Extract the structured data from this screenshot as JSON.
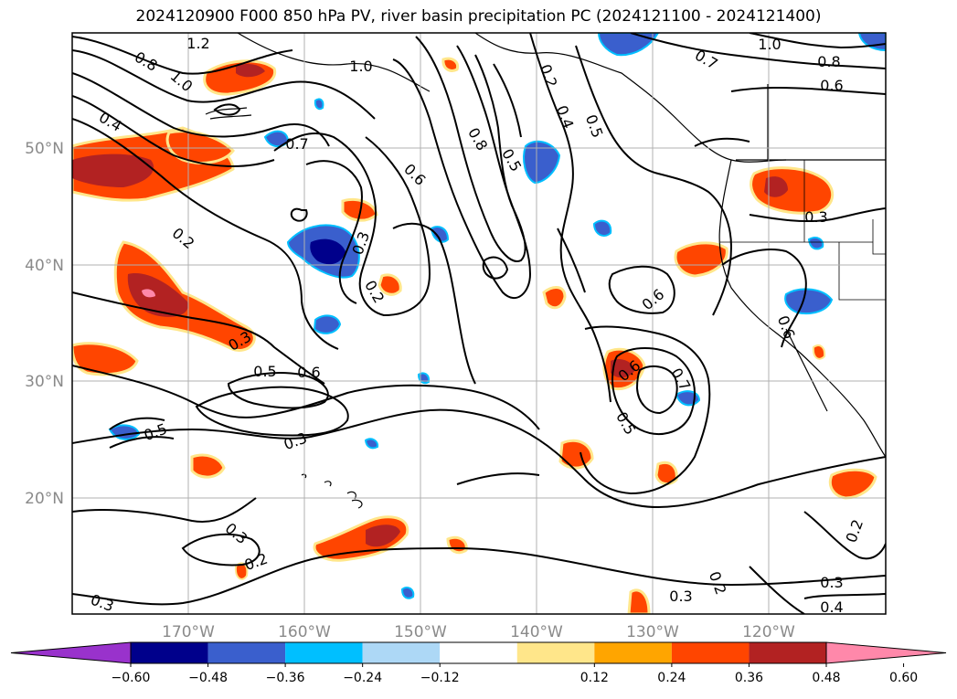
{
  "title": "2024120900 F000 850 hPa PV, river basin precipitation PC (2024121100 - 2024121400)",
  "map": {
    "lat_labels": [
      "50°N",
      "40°N",
      "30°N",
      "20°N"
    ],
    "lon_labels": [
      "170°W",
      "160°W",
      "150°W",
      "140°W",
      "130°W",
      "120°W"
    ],
    "contour_labels": [
      "1.2",
      "0.8",
      "1.0",
      "0.4",
      "0.7",
      "1.0",
      "0.8",
      "0.5",
      "0.4",
      "0.5",
      "0.6",
      "0.7",
      "1.0",
      "0.8",
      "0.6",
      "0.3",
      "0.2",
      "0.2",
      "0.3",
      "0.3",
      "0.5",
      "0.6",
      "0.6",
      "0.6",
      "0.5",
      "0.7",
      "0.5",
      "0.3",
      "0.3",
      "0.2",
      "0.2",
      "0.3",
      "0.2",
      "0.3",
      "0.3",
      "0.4",
      "0.2",
      "0.6"
    ],
    "colors": {
      "land_outline": "#000000",
      "grid": "#b0b0b0",
      "contour": "#000000"
    }
  },
  "colorbar": {
    "ticks": [
      "−0.60",
      "−0.48",
      "−0.36",
      "−0.24",
      "−0.12",
      "0.12",
      "0.24",
      "0.36",
      "0.48",
      "0.60"
    ],
    "colors": [
      "#9932cc",
      "#00008b",
      "#3a5fcd",
      "#00bfff",
      "#add8f6",
      "#ffffff",
      "#ffe68a",
      "#ffa500",
      "#ff4500",
      "#b22222",
      "#ff88aa"
    ]
  }
}
